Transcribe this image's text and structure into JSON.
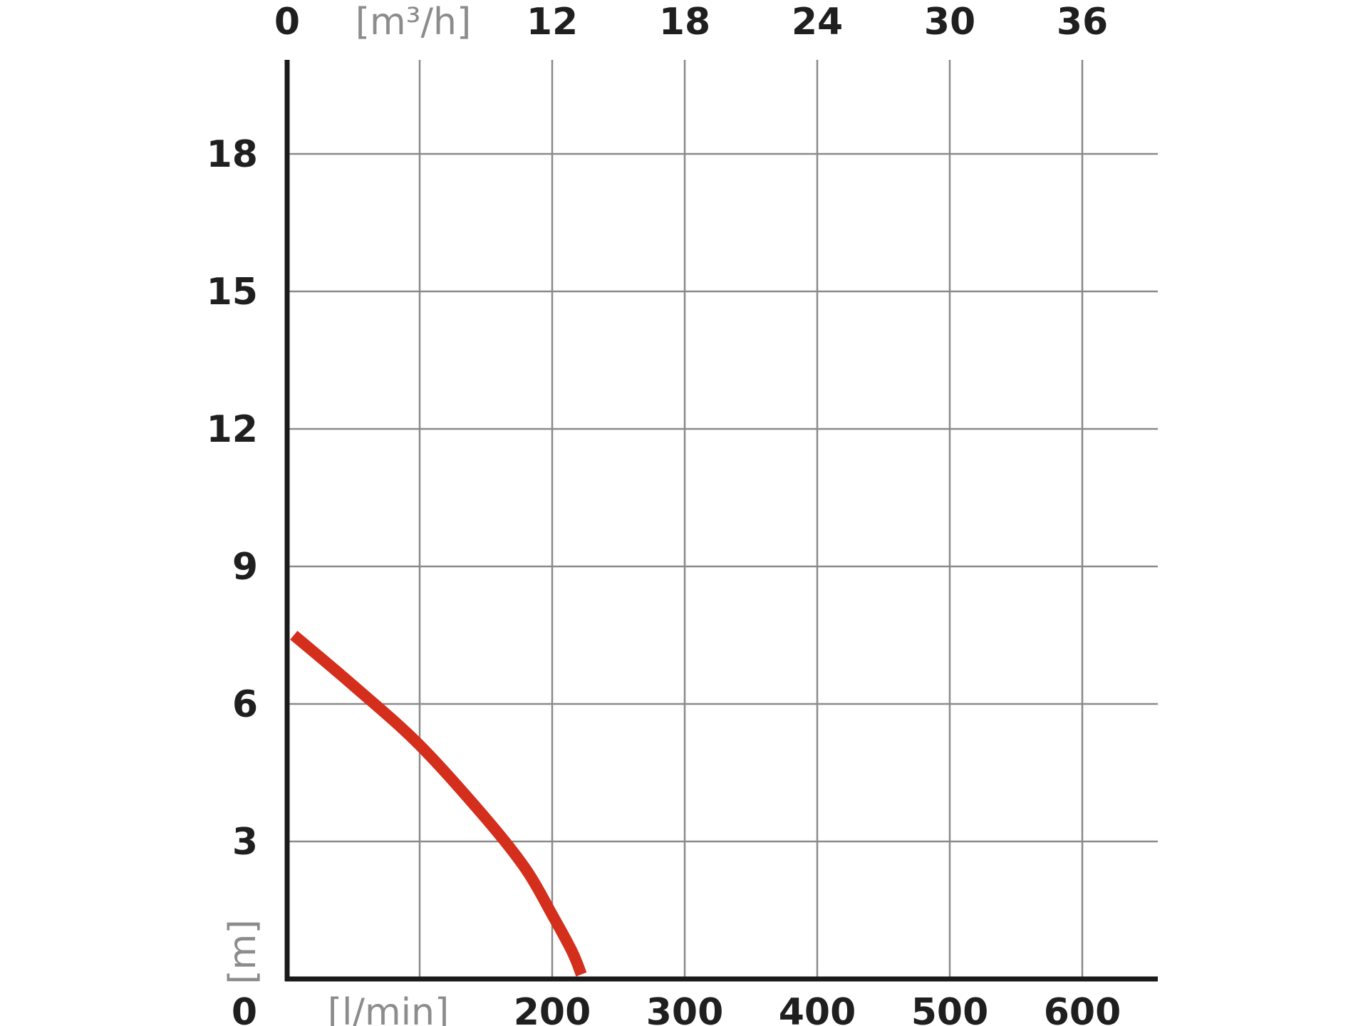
{
  "chart_data": {
    "type": "line",
    "title": "",
    "xlabel": "[l/min]",
    "x2label": "[m³/h]",
    "ylabel": "[m]",
    "xlim": [
      0,
      660
    ],
    "ylim": [
      0,
      20
    ],
    "grid": true,
    "x_origin_label": "0",
    "x2_origin_label": "0",
    "y_origin_label": "0",
    "x_ticks": [
      {
        "value": 100,
        "label": ""
      },
      {
        "value": 200,
        "label": "200"
      },
      {
        "value": 300,
        "label": "300"
      },
      {
        "value": 400,
        "label": "400"
      },
      {
        "value": 500,
        "label": "500"
      },
      {
        "value": 600,
        "label": "600"
      }
    ],
    "x2_ticks": [
      {
        "value": 6,
        "label": ""
      },
      {
        "value": 12,
        "label": "12"
      },
      {
        "value": 18,
        "label": "18"
      },
      {
        "value": 24,
        "label": "24"
      },
      {
        "value": 30,
        "label": "30"
      },
      {
        "value": 36,
        "label": "36"
      }
    ],
    "y_ticks": [
      {
        "value": 3,
        "label": "3"
      },
      {
        "value": 6,
        "label": "6"
      },
      {
        "value": 9,
        "label": "9"
      },
      {
        "value": 12,
        "label": "12"
      },
      {
        "value": 15,
        "label": "15"
      },
      {
        "value": 18,
        "label": "18"
      }
    ],
    "series": [
      {
        "color": "#d42e1c",
        "x": [
          5,
          50,
          100,
          150,
          180,
          200,
          215,
          222
        ],
        "y": [
          7.5,
          6.4,
          5.1,
          3.5,
          2.4,
          1.4,
          0.6,
          0.1
        ]
      }
    ]
  }
}
